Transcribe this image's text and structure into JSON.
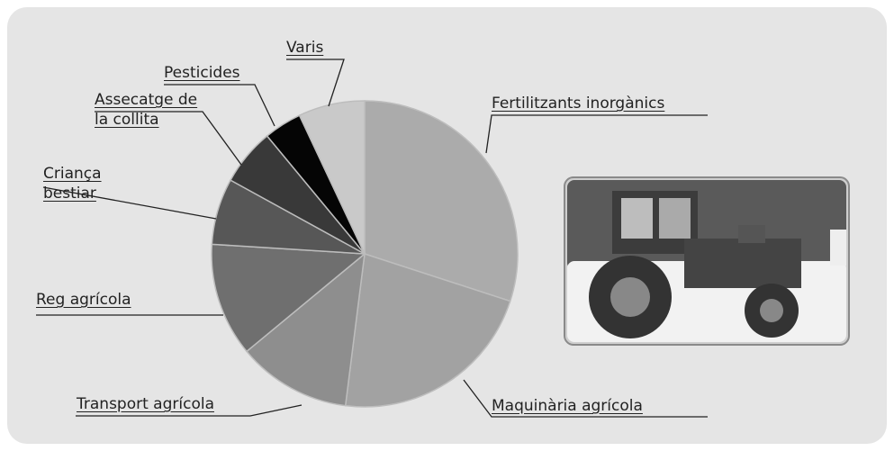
{
  "chart_data": {
    "type": "pie",
    "categories": [
      "Fertilitzants inorgànics",
      "Maquinària agrícola",
      "Transport agrícola",
      "Reg agrícola",
      "Criança bestiar",
      "Assecatge de la collita",
      "Pesticides",
      "Varis"
    ],
    "values": [
      30,
      22,
      12,
      12,
      7,
      6,
      4,
      7
    ],
    "colors": [
      "#ababab",
      "#a2a2a2",
      "#8e8e8e",
      "#6f6f6f",
      "#575757",
      "#393939",
      "#050505",
      "#c9c9c9"
    ]
  }
}
